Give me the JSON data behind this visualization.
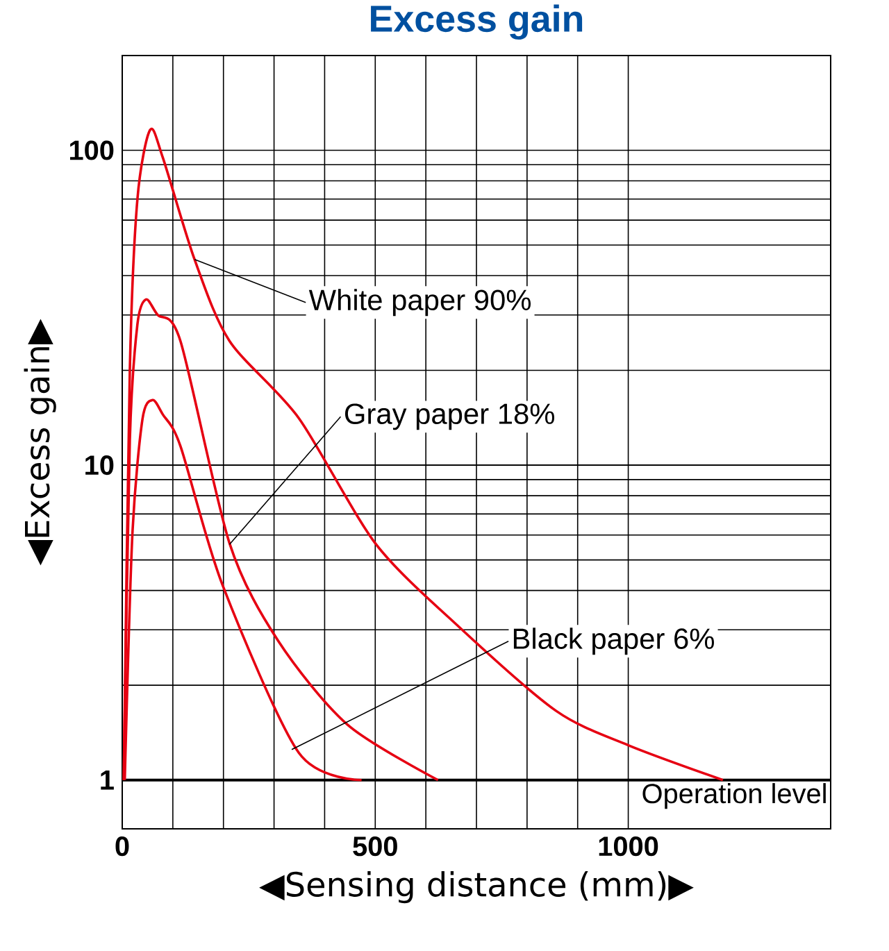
{
  "chart_data": {
    "type": "line",
    "title": "Excess gain",
    "xlabel": "◀Sensing distance (mm)▶",
    "ylabel": "◀Excess gain▶",
    "log": "y",
    "grid": true,
    "xlim": [
      0,
      1400
    ],
    "ylim": [
      0.7,
      200
    ],
    "xticks": [
      0,
      500,
      1000
    ],
    "yticks": [
      1,
      10,
      100
    ],
    "series": [
      {
        "color": "#e60012",
        "x": [
          3,
          15,
          30,
          55,
          80,
          143,
          212,
          349,
          500,
          665,
          857,
          1000,
          1187
        ],
        "values": [
          1,
          20,
          70,
          116,
          95,
          45,
          24.8,
          14.1,
          5.65,
          3.07,
          1.66,
          1.29,
          1
        ]
      },
      {
        "color": "#e60012",
        "x": [
          3,
          15,
          30,
          47,
          70,
          115,
          212,
          308,
          445,
          624
        ],
        "values": [
          1,
          12,
          28,
          33.6,
          30,
          24.8,
          5.65,
          2.77,
          1.5,
          1
        ]
      },
      {
        "color": "#e60012",
        "x": [
          5,
          20,
          40,
          60,
          80,
          115,
          198,
          349,
          473
        ],
        "values": [
          1,
          6,
          14,
          16.1,
          14.5,
          11.5,
          4.17,
          1.22,
          1
        ]
      }
    ],
    "annotations": [
      {
        "text": "White paper 90%",
        "x": 143,
        "y": 45
      },
      {
        "text": "Gray paper 18%",
        "x": 212,
        "y": 5.6
      },
      {
        "text": "Black paper 6%",
        "x": 335,
        "y": 1.25
      }
    ],
    "ref_lines": [
      {
        "axis": "y",
        "value": 1,
        "label": "Operation level"
      }
    ]
  }
}
